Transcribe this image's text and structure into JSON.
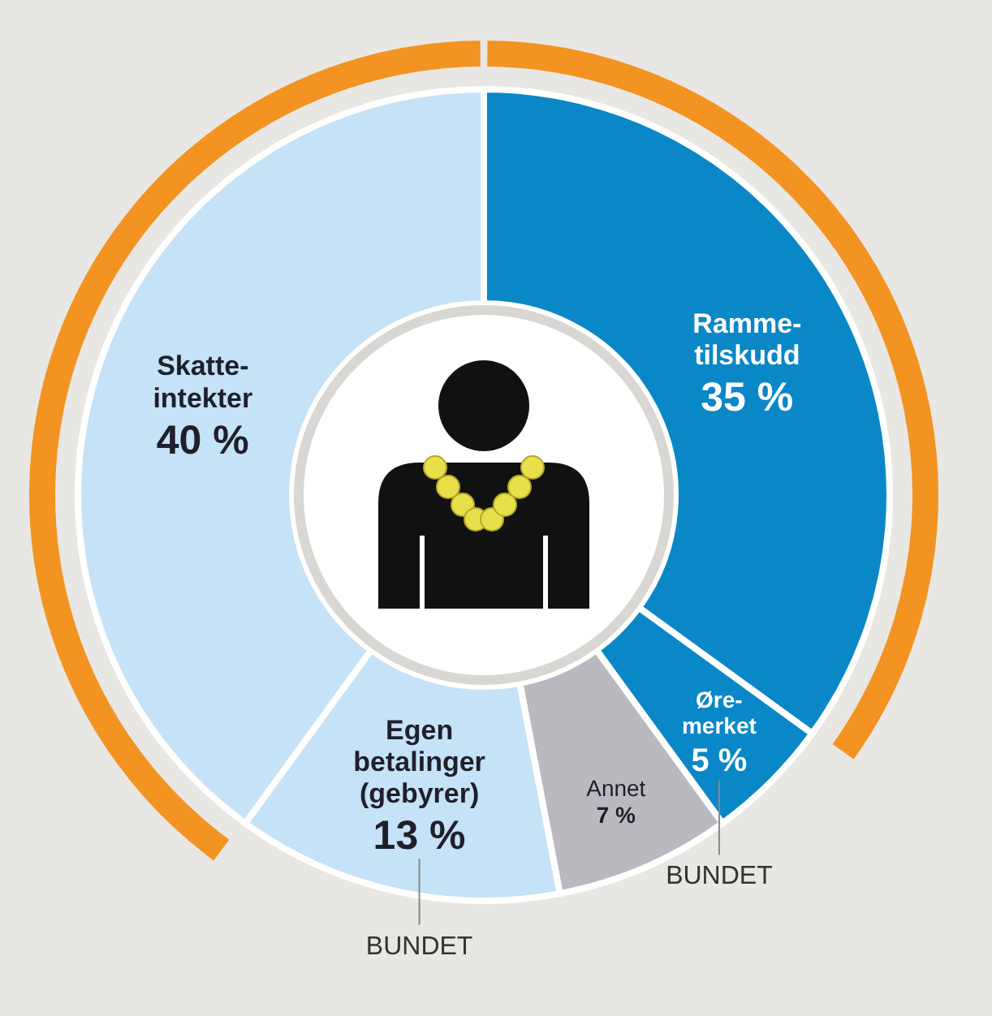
{
  "chart_data": {
    "type": "donut",
    "categories": [
      "Ramme-\ntilskudd",
      "Øre-\nmerket",
      "Annet",
      "Egen\nbetalinger\n(gebyrer)",
      "Skatte-\nintekter"
    ],
    "series": [
      {
        "values": [
          35,
          5,
          7,
          13,
          40
        ],
        "colors": [
          "#0a87c6",
          "#0a87c6",
          "#b9b9bf",
          "#c5e2f6",
          "#c5e2f6"
        ],
        "value_labels": [
          "35 %",
          "5 %",
          "7 %",
          "13 %",
          "40 %"
        ]
      }
    ],
    "annotations": [
      {
        "text": "BUNDET",
        "x": "Egen\nbetalinger\n(gebyrer)"
      },
      {
        "text": "BUNDET",
        "x": "Øre-\nmerket"
      }
    ]
  }
}
